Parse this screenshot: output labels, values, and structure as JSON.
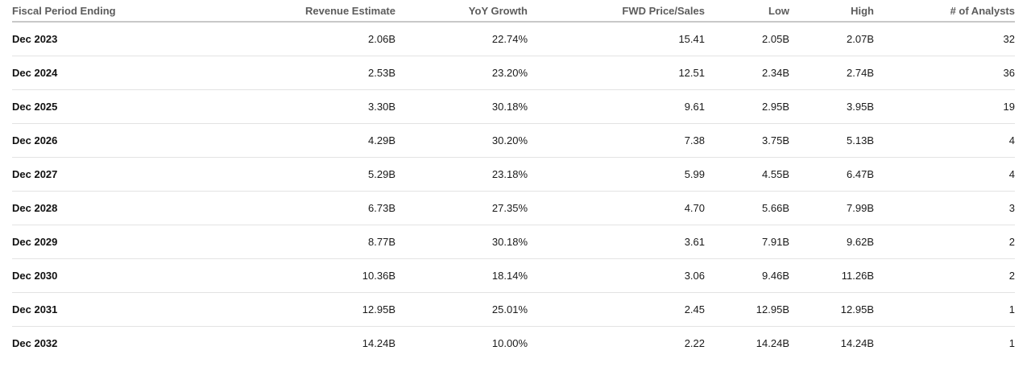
{
  "table": {
    "headers": [
      "Fiscal Period Ending",
      "Revenue Estimate",
      "YoY Growth",
      "FWD Price/Sales",
      "Low",
      "High",
      "# of Analysts"
    ],
    "rows": [
      [
        "Dec 2023",
        "2.06B",
        "22.74%",
        "15.41",
        "2.05B",
        "2.07B",
        "32"
      ],
      [
        "Dec 2024",
        "2.53B",
        "23.20%",
        "12.51",
        "2.34B",
        "2.74B",
        "36"
      ],
      [
        "Dec 2025",
        "3.30B",
        "30.18%",
        "9.61",
        "2.95B",
        "3.95B",
        "19"
      ],
      [
        "Dec 2026",
        "4.29B",
        "30.20%",
        "7.38",
        "3.75B",
        "5.13B",
        "4"
      ],
      [
        "Dec 2027",
        "5.29B",
        "23.18%",
        "5.99",
        "4.55B",
        "6.47B",
        "4"
      ],
      [
        "Dec 2028",
        "6.73B",
        "27.35%",
        "4.70",
        "5.66B",
        "7.99B",
        "3"
      ],
      [
        "Dec 2029",
        "8.77B",
        "30.18%",
        "3.61",
        "7.91B",
        "9.62B",
        "2"
      ],
      [
        "Dec 2030",
        "10.36B",
        "18.14%",
        "3.06",
        "9.46B",
        "11.26B",
        "2"
      ],
      [
        "Dec 2031",
        "12.95B",
        "25.01%",
        "2.45",
        "12.95B",
        "12.95B",
        "1"
      ],
      [
        "Dec 2032",
        "14.24B",
        "10.00%",
        "2.22",
        "14.24B",
        "14.24B",
        "1"
      ]
    ]
  }
}
